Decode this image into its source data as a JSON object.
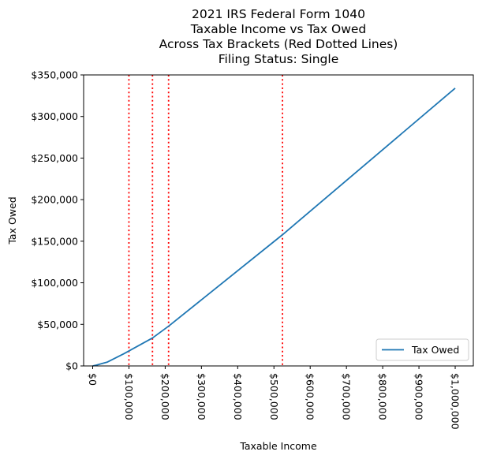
{
  "chart_data": {
    "type": "line",
    "title": "2021 IRS Federal Form 1040",
    "subtitle_lines": [
      "Taxable Income vs Tax Owed",
      "Across Tax Brackets (Red Dotted Lines)",
      "Filing Status: Single"
    ],
    "xlabel": "Taxable Income",
    "ylabel": "Tax Owed",
    "xlim": [
      -25000,
      1050000
    ],
    "ylim": [
      0,
      350000
    ],
    "x_ticks": [
      {
        "value": 0,
        "label": "$0"
      },
      {
        "value": 100000,
        "label": "$100,000"
      },
      {
        "value": 200000,
        "label": "$200,000"
      },
      {
        "value": 300000,
        "label": "$300,000"
      },
      {
        "value": 400000,
        "label": "$400,000"
      },
      {
        "value": 500000,
        "label": "$500,000"
      },
      {
        "value": 600000,
        "label": "$600,000"
      },
      {
        "value": 700000,
        "label": "$700,000"
      },
      {
        "value": 800000,
        "label": "$800,000"
      },
      {
        "value": 900000,
        "label": "$900,000"
      },
      {
        "value": 1000000,
        "label": "$1,000,000"
      }
    ],
    "y_ticks": [
      {
        "value": 0,
        "label": "$0"
      },
      {
        "value": 50000,
        "label": "$50,000"
      },
      {
        "value": 100000,
        "label": "$100,000"
      },
      {
        "value": 150000,
        "label": "$150,000"
      },
      {
        "value": 200000,
        "label": "$200,000"
      },
      {
        "value": 250000,
        "label": "$250,000"
      },
      {
        "value": 300000,
        "label": "$300,000"
      },
      {
        "value": 350000,
        "label": "$350,000"
      }
    ],
    "bracket_lines": [
      99950,
      164925,
      209425,
      523600
    ],
    "series": [
      {
        "name": "Tax Owed",
        "color": "#1f77b4",
        "x": [
          0,
          9950,
          40525,
          86375,
          164925,
          209425,
          523600,
          1000000
        ],
        "y": [
          0,
          995,
          4664,
          14751,
          33603,
          47843,
          157804,
          334072
        ]
      }
    ],
    "legend_position": "lower right",
    "grid": false,
    "colors": {
      "bracket_line": "#ff0000",
      "axes": "#000000"
    }
  }
}
